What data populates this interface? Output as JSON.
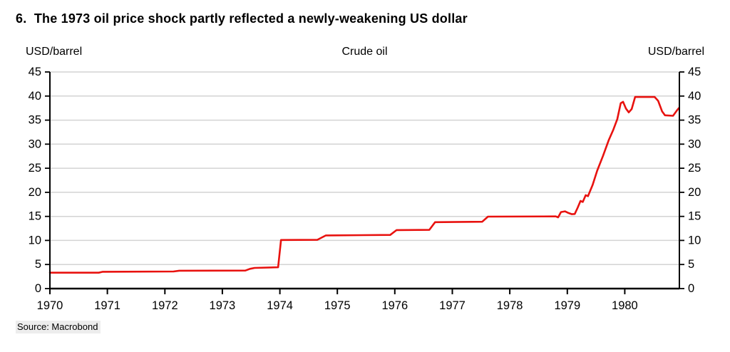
{
  "header": {
    "title": "6.  The 1973 oil price shock partly reflected a newly-weakening US dollar"
  },
  "source": {
    "label": "Source: Macrobond"
  },
  "colors": {
    "line": "#e8120f",
    "axis": "#000000",
    "grid": "#d3d3d3",
    "background": "#ffffff",
    "source_bg": "#ededed"
  },
  "chart_data": {
    "type": "line",
    "title": "Crude oil",
    "left_axis_label": "USD/barrel",
    "right_axis_label": "USD/barrel",
    "xlabel": "",
    "ylabel": "USD/barrel",
    "ylim": [
      0,
      45
    ],
    "xlim": [
      1970,
      1980.95
    ],
    "y_ticks": [
      0,
      5,
      10,
      15,
      20,
      25,
      30,
      35,
      40,
      45
    ],
    "x_ticks": [
      1970,
      1971,
      1972,
      1973,
      1974,
      1975,
      1976,
      1977,
      1978,
      1979,
      1980
    ],
    "grid": true,
    "legend": "none",
    "series": [
      {
        "name": "Crude oil (USD/barrel)",
        "points": [
          [
            1970.0,
            3.3
          ],
          [
            1970.85,
            3.3
          ],
          [
            1970.92,
            3.5
          ],
          [
            1972.15,
            3.55
          ],
          [
            1972.25,
            3.72
          ],
          [
            1973.4,
            3.75
          ],
          [
            1973.48,
            4.1
          ],
          [
            1973.56,
            4.3
          ],
          [
            1973.97,
            4.42
          ],
          [
            1974.02,
            10.1
          ],
          [
            1974.65,
            10.12
          ],
          [
            1974.8,
            11.05
          ],
          [
            1975.92,
            11.15
          ],
          [
            1976.03,
            12.15
          ],
          [
            1976.6,
            12.2
          ],
          [
            1976.7,
            13.8
          ],
          [
            1977.52,
            13.88
          ],
          [
            1977.62,
            14.95
          ],
          [
            1978.8,
            15.0
          ],
          [
            1978.84,
            14.8
          ],
          [
            1978.89,
            15.9
          ],
          [
            1978.96,
            16.05
          ],
          [
            1979.02,
            15.7
          ],
          [
            1979.08,
            15.45
          ],
          [
            1979.13,
            15.5
          ],
          [
            1979.18,
            16.8
          ],
          [
            1979.23,
            18.2
          ],
          [
            1979.27,
            18.0
          ],
          [
            1979.32,
            19.4
          ],
          [
            1979.36,
            19.2
          ],
          [
            1979.44,
            21.5
          ],
          [
            1979.52,
            24.5
          ],
          [
            1979.62,
            27.5
          ],
          [
            1979.72,
            30.8
          ],
          [
            1979.8,
            33.0
          ],
          [
            1979.87,
            35.2
          ],
          [
            1979.93,
            38.5
          ],
          [
            1979.97,
            38.8
          ],
          [
            1980.02,
            37.4
          ],
          [
            1980.07,
            36.6
          ],
          [
            1980.12,
            37.3
          ],
          [
            1980.18,
            39.8
          ],
          [
            1980.52,
            39.8
          ],
          [
            1980.58,
            39.0
          ],
          [
            1980.65,
            36.8
          ],
          [
            1980.7,
            36.0
          ],
          [
            1980.84,
            35.9
          ],
          [
            1980.9,
            36.9
          ],
          [
            1980.94,
            37.5
          ]
        ]
      }
    ]
  }
}
